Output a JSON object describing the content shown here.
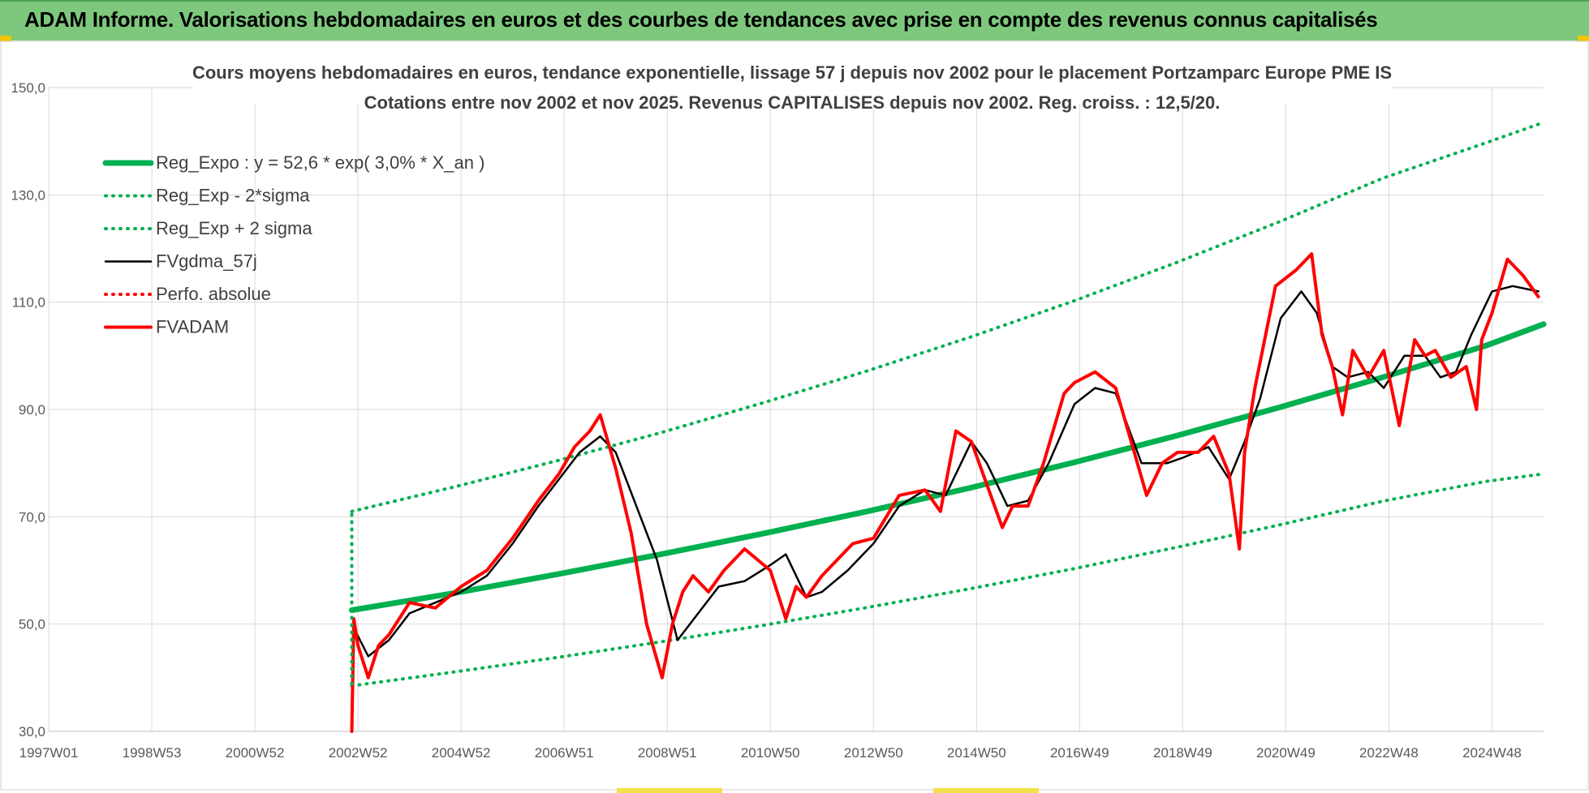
{
  "header": {
    "title": "ADAM Informe. Valorisations hebdomadaires en euros et des courbes de tendances avec prise en compte des revenus connus capitalisés"
  },
  "colors": {
    "header_bg": "#7dc87d",
    "green": "#00b050",
    "red": "#ff0000",
    "black": "#000000",
    "grid": "#d9d9d9"
  },
  "chart_data": {
    "type": "line",
    "title_lines": [
      "Cours moyens hebdomadaires en euros, tendance exponentielle, lissage 57 j depuis nov 2002  pour le placement Portzamparc Europe PME IS",
      "Cotations entre nov 2002 et nov 2025. Revenus CAPITALISES depuis nov 2002. Reg. croiss. : 12,5/20."
    ],
    "x_ticks": [
      "1997W01",
      "1998W53",
      "2000W52",
      "2002W52",
      "2004W52",
      "2006W51",
      "2008W51",
      "2010W50",
      "2012W50",
      "2014W50",
      "2016W49",
      "2018W49",
      "2020W49",
      "2022W48",
      "2024W48"
    ],
    "x_range": [
      1997.0,
      2026.0
    ],
    "y_range": [
      30,
      150
    ],
    "y_ticks": [
      "30,0",
      "50,0",
      "70,0",
      "90,0",
      "110,0",
      "130,0",
      "150,0"
    ],
    "y_tick_values": [
      30,
      50,
      70,
      90,
      110,
      130,
      150
    ],
    "legend_position": "top-left",
    "grid": true,
    "series": [
      {
        "name": "Reg_Expo : y = 52,6 * exp( 3,0% *  X_an )",
        "style": "solid-thick",
        "color": "#00b050",
        "x": [
          2002.88,
          2004.88,
          2006.88,
          2008.88,
          2010.88,
          2012.88,
          2014.88,
          2016.88,
          2018.88,
          2020.88,
          2022.88,
          2024.88,
          2026.0
        ],
        "values": [
          52.6,
          55.8,
          59.3,
          63.0,
          66.9,
          71.0,
          75.4,
          80.1,
          85.1,
          90.4,
          96.0,
          101.9,
          105.9
        ]
      },
      {
        "name": "Reg_Exp - 2*sigma",
        "style": "dotted",
        "color": "#00b050",
        "x": [
          2002.88,
          2004.88,
          2006.88,
          2008.88,
          2010.88,
          2012.88,
          2014.88,
          2016.88,
          2018.88,
          2020.88,
          2022.88,
          2024.88,
          2026.0
        ],
        "values": [
          38.5,
          41.1,
          43.8,
          46.7,
          49.8,
          53.1,
          56.6,
          60.3,
          64.3,
          68.5,
          72.9,
          76.6,
          78.0
        ]
      },
      {
        "name": "Reg_Exp + 2 sigma",
        "style": "dotted",
        "color": "#00b050",
        "x": [
          2002.88,
          2004.88,
          2006.88,
          2008.88,
          2010.88,
          2012.88,
          2014.88,
          2016.88,
          2018.88,
          2020.88,
          2022.88,
          2024.88,
          2026.0
        ],
        "values": [
          71.0,
          75.6,
          80.5,
          85.7,
          91.3,
          97.2,
          103.5,
          110.2,
          117.4,
          125.0,
          133.1,
          139.7,
          143.5
        ]
      },
      {
        "name": "FVgdma_57j",
        "style": "solid",
        "color": "#000000",
        "x": [
          2002.88,
          2003.2,
          2003.6,
          2004.0,
          2004.5,
          2005.0,
          2005.5,
          2006.0,
          2006.5,
          2006.9,
          2007.3,
          2007.7,
          2008.0,
          2008.4,
          2008.8,
          2009.2,
          2009.6,
          2010.0,
          2010.5,
          2011.0,
          2011.3,
          2011.7,
          2012.0,
          2012.5,
          2013.0,
          2013.5,
          2014.0,
          2014.4,
          2014.9,
          2015.2,
          2015.6,
          2016.0,
          2016.4,
          2016.9,
          2017.3,
          2017.7,
          2018.2,
          2018.7,
          2019.0,
          2019.5,
          2019.9,
          2020.2,
          2020.5,
          2020.9,
          2021.3,
          2021.6,
          2021.9,
          2022.2,
          2022.6,
          2022.9,
          2023.3,
          2023.7,
          2024.0,
          2024.3,
          2024.6,
          2025.0,
          2025.4,
          2025.9
        ],
        "values": [
          50,
          44,
          47,
          52,
          54,
          56,
          59,
          65,
          72,
          77,
          82,
          85,
          82,
          72,
          62,
          47,
          52,
          57,
          58,
          61,
          63,
          55,
          56,
          60,
          65,
          72,
          75,
          74,
          84,
          80,
          72,
          73,
          80,
          91,
          94,
          93,
          80,
          80,
          81,
          83,
          77,
          84,
          92,
          107,
          112,
          108,
          98,
          96,
          97,
          94,
          100,
          100,
          96,
          97,
          104,
          112,
          113,
          112
        ]
      },
      {
        "name": "Perfo. absolue",
        "style": "dotted",
        "color": "#ff0000",
        "x": [],
        "values": []
      },
      {
        "name": "FVADAM",
        "style": "solid-thick",
        "color": "#ff0000",
        "x": [
          2002.88,
          2002.92,
          2003.0,
          2003.2,
          2003.4,
          2003.6,
          2004.0,
          2004.5,
          2005.0,
          2005.5,
          2006.0,
          2006.5,
          2006.9,
          2007.2,
          2007.5,
          2007.7,
          2008.0,
          2008.3,
          2008.6,
          2008.9,
          2009.1,
          2009.3,
          2009.5,
          2009.8,
          2010.1,
          2010.5,
          2011.0,
          2011.3,
          2011.5,
          2011.7,
          2012.0,
          2012.3,
          2012.6,
          2013.0,
          2013.5,
          2014.0,
          2014.3,
          2014.6,
          2014.9,
          2015.2,
          2015.5,
          2015.7,
          2016.0,
          2016.3,
          2016.7,
          2016.9,
          2017.3,
          2017.7,
          2018.0,
          2018.3,
          2018.6,
          2018.9,
          2019.3,
          2019.6,
          2019.9,
          2020.1,
          2020.2,
          2020.4,
          2020.8,
          2021.2,
          2021.5,
          2021.7,
          2021.9,
          2022.1,
          2022.3,
          2022.6,
          2022.9,
          2023.2,
          2023.5,
          2023.7,
          2023.9,
          2024.2,
          2024.5,
          2024.7,
          2024.8,
          2025.0,
          2025.3,
          2025.6,
          2025.9
        ],
        "values": [
          30,
          51,
          46,
          40,
          46,
          48,
          54,
          53,
          57,
          60,
          66,
          73,
          78,
          83,
          86,
          89,
          79,
          67,
          50,
          40,
          50,
          56,
          59,
          56,
          60,
          64,
          60,
          51,
          57,
          55,
          59,
          62,
          65,
          66,
          74,
          75,
          71,
          86,
          84,
          76,
          68,
          72,
          72,
          80,
          93,
          95,
          97,
          94,
          84,
          74,
          80,
          82,
          82,
          85,
          78,
          64,
          82,
          94,
          113,
          116,
          119,
          104,
          98,
          89,
          101,
          96,
          101,
          87,
          103,
          100,
          101,
          96,
          98,
          90,
          103,
          108,
          118,
          115,
          111
        ]
      }
    ]
  }
}
